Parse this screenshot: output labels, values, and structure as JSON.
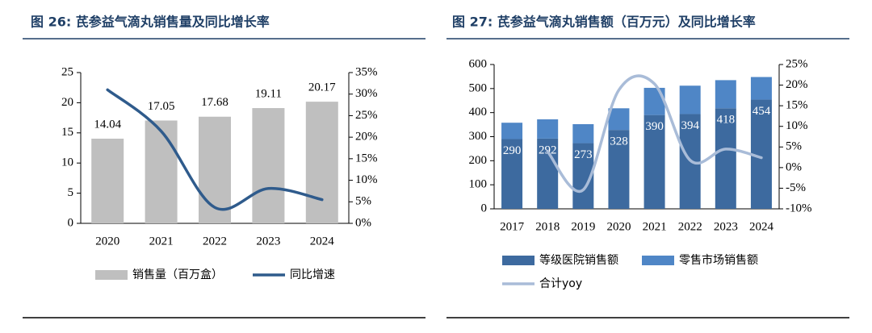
{
  "chart_data": [
    {
      "type": "bar",
      "title": "图 26:  芪参益气滴丸销售量及同比增长率",
      "categories": [
        "2020",
        "2021",
        "2022",
        "2023",
        "2024"
      ],
      "series": [
        {
          "name": "销售量（百万盒）",
          "color": "#bfbfbf",
          "values": [
            14.04,
            17.05,
            17.68,
            19.11,
            20.17
          ],
          "data_labels": true
        },
        {
          "name": "同比增速",
          "color": "#2f5b8c",
          "axis": "y2",
          "values": [
            31,
            21.4,
            3.7,
            8.1,
            5.5
          ]
        }
      ],
      "ylim": [
        0,
        25
      ],
      "yticks": [
        0,
        5,
        10,
        15,
        20,
        25
      ],
      "y2lim": [
        0,
        35
      ],
      "y2ticks": [
        {
          "value": 0,
          "label": "0%"
        },
        {
          "value": 5,
          "label": "5%"
        },
        {
          "value": 10,
          "label": "10%"
        },
        {
          "value": 15,
          "label": "15%"
        },
        {
          "value": 20,
          "label": "20%"
        },
        {
          "value": 25,
          "label": "25%"
        },
        {
          "value": 30,
          "label": "30%"
        },
        {
          "value": 35,
          "label": "35%"
        }
      ]
    },
    {
      "type": "stacked_bar",
      "title": "图 27:  芪参益气滴丸销售额（百万元）及同比增长率",
      "categories": [
        "2017",
        "2018",
        "2019",
        "2020",
        "2021",
        "2022",
        "2023",
        "2024"
      ],
      "series": [
        {
          "name": "等级医院销售额",
          "color": "#3d6a9f",
          "values": [
            290,
            292,
            273,
            328,
            390,
            394,
            418,
            454
          ],
          "data_labels": true
        },
        {
          "name": "零售市场销售额",
          "color": "#4f86c6",
          "values": [
            68,
            80,
            79,
            90,
            113,
            118,
            117,
            94
          ]
        },
        {
          "name": "合计yoy",
          "color": "#a9bcd8",
          "axis": "y2",
          "values": [
            null,
            3.9,
            -5.4,
            18.8,
            20.3,
            1.8,
            4.5,
            2.4
          ]
        }
      ],
      "ylim": [
        0,
        600
      ],
      "yticks": [
        0,
        100,
        200,
        300,
        400,
        500,
        600
      ],
      "y2lim": [
        -10,
        25
      ],
      "y2ticks": [
        {
          "value": -10,
          "label": "-10%"
        },
        {
          "value": -5,
          "label": "-5%"
        },
        {
          "value": 0,
          "label": "0%"
        },
        {
          "value": 5,
          "label": "5%"
        },
        {
          "value": 10,
          "label": "10%"
        },
        {
          "value": 15,
          "label": "15%"
        },
        {
          "value": 20,
          "label": "20%"
        },
        {
          "value": 25,
          "label": "25%"
        }
      ]
    }
  ]
}
